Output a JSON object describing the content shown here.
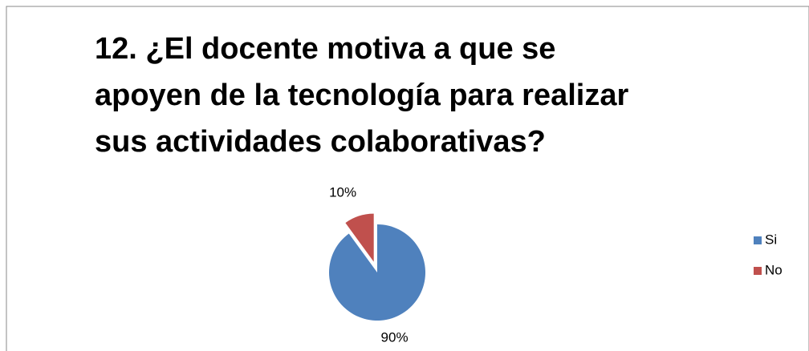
{
  "chart_data": {
    "type": "pie",
    "title": "12. ¿El docente motiva a que se apoyen de la tecnología para realizar sus actividades colaborativas?",
    "categories": [
      "Si",
      "No"
    ],
    "values": [
      90,
      10
    ],
    "value_labels": [
      "90%",
      "10%"
    ],
    "colors": [
      "#4f81bd",
      "#c0504d"
    ],
    "legend": "right"
  }
}
